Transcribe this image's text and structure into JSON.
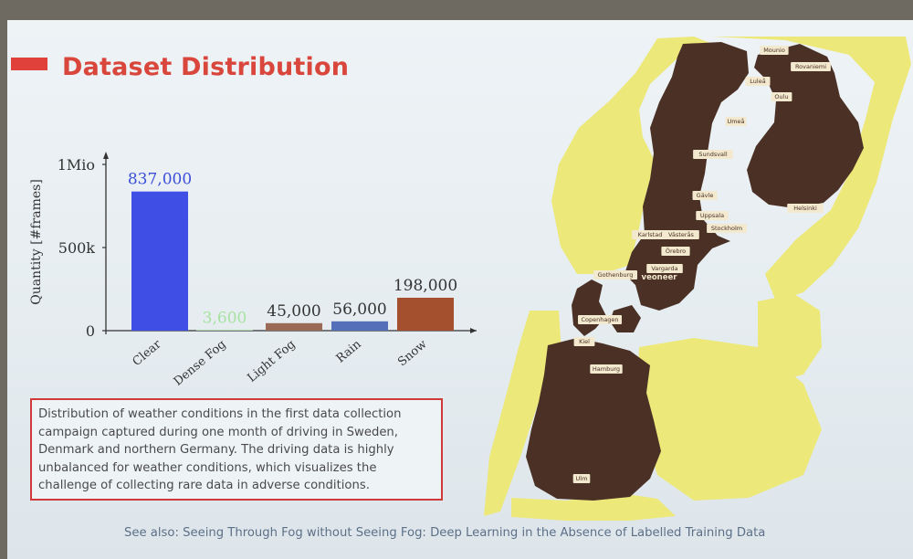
{
  "slide": {
    "title": "Dataset Distribution",
    "caption": "Distribution of weather conditions in the first data collection campaign captured during one month of driving in Sweden, Denmark and northern Germany. The driving data is highly unbalanced for weather conditions, which visualizes the challenge of collecting rare data in adverse conditions.",
    "footer": "See also: Seeing Through Fog without Seeing Fog: Deep Learning in the Absence of Labelled Training Data"
  },
  "chart_data": {
    "type": "bar",
    "categories": [
      "Clear",
      "Dense Fog",
      "Light Fog",
      "Rain",
      "Snow"
    ],
    "values": [
      837000,
      3600,
      45000,
      56000,
      198000
    ],
    "value_labels": [
      "837,000",
      "3,600",
      "45,000",
      "56,000",
      "198,000"
    ],
    "colors": [
      "#3f4fe6",
      "#a7e2a2",
      "#9a6a57",
      "#5570b8",
      "#a4502e"
    ],
    "label_colors": [
      "#3a4ed8",
      "#a7e2a2",
      "#333333",
      "#333333",
      "#333333"
    ],
    "ylabel": "Quantity [#frames]",
    "y_ticks": [
      0,
      500000,
      1000000
    ],
    "y_tick_labels": [
      "0",
      "500k",
      "1Mio"
    ],
    "ylim": [
      0,
      1000000
    ],
    "grid": false,
    "legend": false
  },
  "map": {
    "colors": {
      "land": "#4b3125",
      "neighbor": "#ece87a",
      "sea": "#e5ecf0"
    },
    "city_labels": [
      "Mounio",
      "Rovaniemi",
      "Luleå",
      "Oulu",
      "Umeå",
      "Sundsvall",
      "Gävle",
      "Uppsala",
      "Helsinki",
      "Stockholm",
      "Karlstad",
      "Västerås",
      "Örebro",
      "Vargarda",
      "Gothenburg",
      "veoneer",
      "Copenhagen",
      "Kiel",
      "Hamburg",
      "Ulm"
    ]
  }
}
